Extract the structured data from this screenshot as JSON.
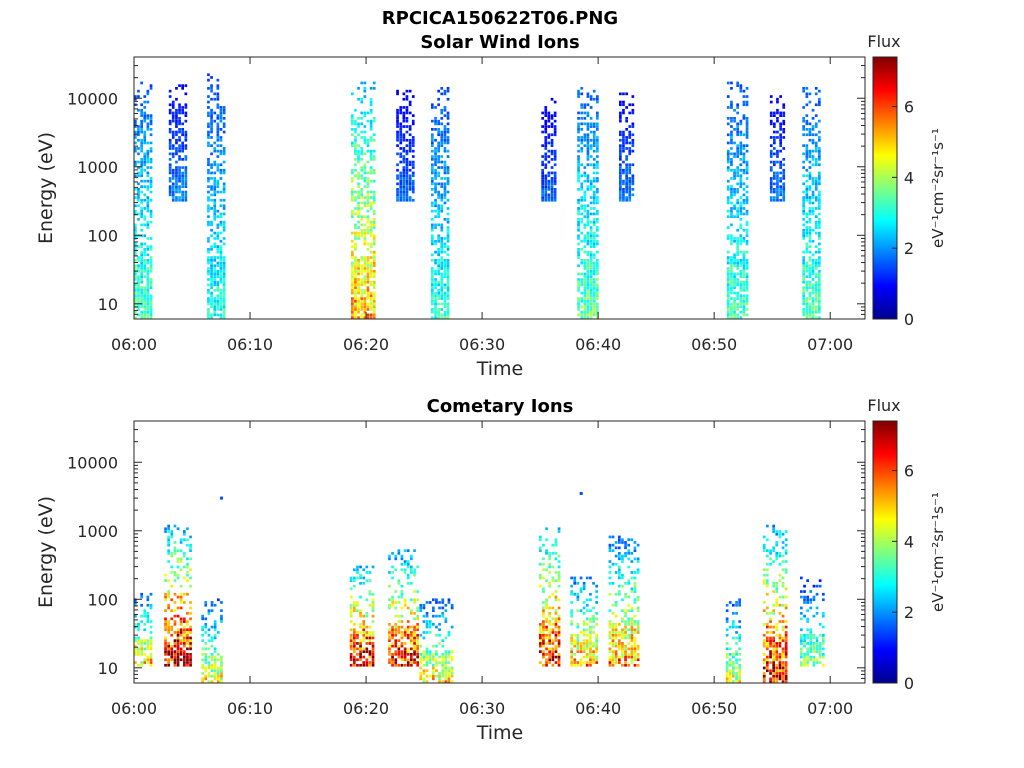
{
  "figure_title": "RPCICA150622T06.PNG",
  "chart_data": [
    {
      "type": "heatmap",
      "title": "Solar Wind Ions",
      "xlabel": "Time",
      "ylabel": "Energy (eV)",
      "x_tick_labels": [
        "06:00",
        "06:10",
        "06:20",
        "06:30",
        "06:40",
        "06:50",
        "07:00"
      ],
      "x_tick_minutes": [
        0,
        10,
        20,
        30,
        40,
        50,
        60
      ],
      "xlim_minutes": [
        0,
        63
      ],
      "y_scale": "log",
      "ylim": [
        6,
        40000
      ],
      "y_tick_values": [
        10,
        100,
        1000,
        10000
      ],
      "y_tick_labels": [
        "10",
        "100",
        "1000",
        "10000"
      ],
      "colorbar": {
        "title": "Flux",
        "label": "eV⁻¹cm⁻²sr⁻¹s⁻¹",
        "range": [
          0,
          7.4
        ],
        "tick_values": [
          0,
          2,
          4,
          6
        ],
        "tick_labels": [
          "0",
          "2",
          "4",
          "6"
        ],
        "colormap": "jet"
      },
      "bursts": [
        {
          "t_start": 0.0,
          "t_end": 1.6,
          "e_min": 6,
          "e_max": 16000,
          "peak": 3.4
        },
        {
          "t_start": 3.0,
          "t_end": 4.4,
          "e_min": 300,
          "e_max": 15000,
          "peak": 1.9
        },
        {
          "t_start": 6.3,
          "t_end": 7.9,
          "e_min": 6,
          "e_max": 22000,
          "peak": 3.0
        },
        {
          "t_start": 18.7,
          "t_end": 20.6,
          "e_min": 6,
          "e_max": 16000,
          "peak": 5.2
        },
        {
          "t_start": 22.6,
          "t_end": 24.2,
          "e_min": 300,
          "e_max": 13000,
          "peak": 1.7
        },
        {
          "t_start": 25.6,
          "t_end": 27.0,
          "e_min": 6,
          "e_max": 14000,
          "peak": 3.1
        },
        {
          "t_start": 35.1,
          "t_end": 36.3,
          "e_min": 300,
          "e_max": 10000,
          "peak": 1.6
        },
        {
          "t_start": 38.2,
          "t_end": 39.9,
          "e_min": 6,
          "e_max": 14000,
          "peak": 3.5
        },
        {
          "t_start": 41.8,
          "t_end": 42.9,
          "e_min": 300,
          "e_max": 12000,
          "peak": 1.8
        },
        {
          "t_start": 51.1,
          "t_end": 52.8,
          "e_min": 6,
          "e_max": 16000,
          "peak": 3.3
        },
        {
          "t_start": 54.8,
          "t_end": 55.9,
          "e_min": 300,
          "e_max": 12000,
          "peak": 1.8
        },
        {
          "t_start": 57.6,
          "t_end": 59.1,
          "e_min": 6,
          "e_max": 14000,
          "peak": 3.4
        }
      ]
    },
    {
      "type": "heatmap",
      "title": "Cometary Ions",
      "xlabel": "Time",
      "ylabel": "Energy (eV)",
      "x_tick_labels": [
        "06:00",
        "06:10",
        "06:20",
        "06:30",
        "06:40",
        "06:50",
        "07:00"
      ],
      "x_tick_minutes": [
        0,
        10,
        20,
        30,
        40,
        50,
        60
      ],
      "xlim_minutes": [
        0,
        63
      ],
      "y_scale": "log",
      "ylim": [
        6,
        40000
      ],
      "y_tick_values": [
        10,
        100,
        1000,
        10000
      ],
      "y_tick_labels": [
        "10",
        "100",
        "1000",
        "10000"
      ],
      "colorbar": {
        "title": "Flux",
        "label": "eV⁻¹cm⁻²sr⁻¹s⁻¹",
        "range": [
          0,
          7.4
        ],
        "tick_values": [
          0,
          2,
          4,
          6
        ],
        "tick_labels": [
          "0",
          "2",
          "4",
          "6"
        ],
        "colormap": "jet"
      },
      "bursts": [
        {
          "t_start": 0.0,
          "t_end": 1.6,
          "e_min": 10,
          "e_max": 120,
          "peak": 5.0
        },
        {
          "t_start": 2.6,
          "t_end": 4.8,
          "e_min": 10,
          "e_max": 1200,
          "peak": 7.2
        },
        {
          "t_start": 5.8,
          "t_end": 7.5,
          "e_min": 6,
          "e_max": 100,
          "peak": 4.6
        },
        {
          "t_start": 18.6,
          "t_end": 20.6,
          "e_min": 10,
          "e_max": 300,
          "peak": 7.0
        },
        {
          "t_start": 21.9,
          "t_end": 24.5,
          "e_min": 10,
          "e_max": 500,
          "peak": 6.6
        },
        {
          "t_start": 24.6,
          "t_end": 27.4,
          "e_min": 6,
          "e_max": 100,
          "peak": 4.8
        },
        {
          "t_start": 34.9,
          "t_end": 36.7,
          "e_min": 10,
          "e_max": 1100,
          "peak": 6.8
        },
        {
          "t_start": 37.6,
          "t_end": 40.0,
          "e_min": 10,
          "e_max": 200,
          "peak": 5.4
        },
        {
          "t_start": 40.9,
          "t_end": 43.4,
          "e_min": 10,
          "e_max": 800,
          "peak": 5.5
        },
        {
          "t_start": 51.0,
          "t_end": 52.2,
          "e_min": 6,
          "e_max": 100,
          "peak": 4.4
        },
        {
          "t_start": 54.2,
          "t_end": 56.2,
          "e_min": 6,
          "e_max": 1200,
          "peak": 6.8
        },
        {
          "t_start": 57.4,
          "t_end": 59.4,
          "e_min": 10,
          "e_max": 200,
          "peak": 3.8
        }
      ],
      "isolated_points": [
        {
          "t": 7.5,
          "e": 3000,
          "value": 1.5
        },
        {
          "t": 38.5,
          "e": 3500,
          "value": 1.5
        }
      ]
    }
  ]
}
